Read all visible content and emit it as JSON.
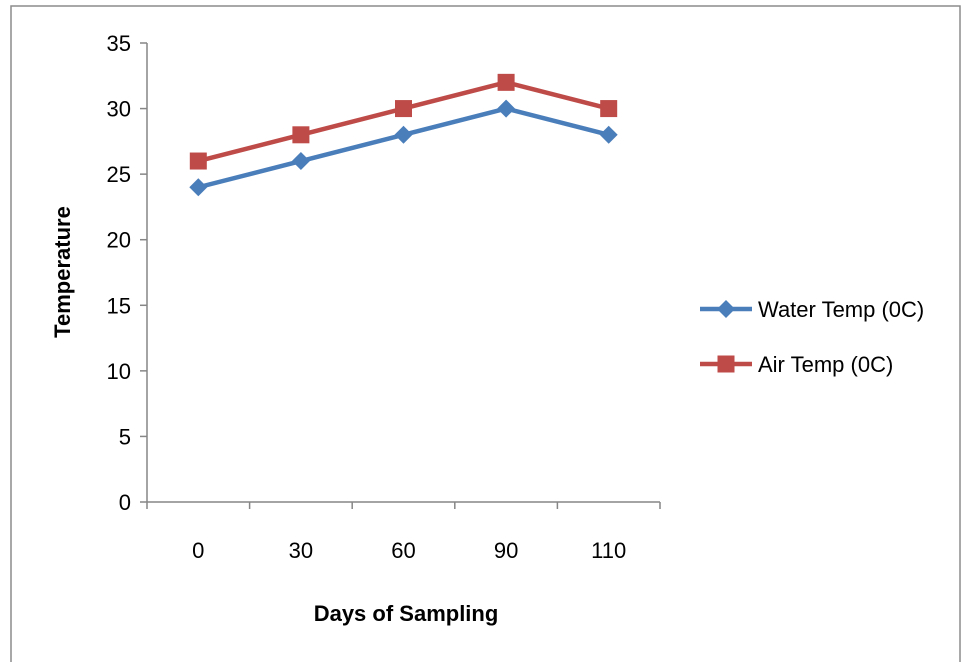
{
  "chart_data": {
    "type": "line",
    "title": "",
    "xlabel": "Days of Sampling",
    "ylabel": "Temperature",
    "categories": [
      "0",
      "30",
      "60",
      "90",
      "110"
    ],
    "ylim": [
      0,
      35
    ],
    "yticks": [
      0,
      5,
      10,
      15,
      20,
      25,
      30,
      35
    ],
    "grid": false,
    "legend_position": "right",
    "series": [
      {
        "name": "Water Temp (0C)",
        "values": [
          24,
          26,
          28,
          30,
          28
        ],
        "color": "#4a7ebb",
        "marker": "diamond"
      },
      {
        "name": "Air Temp (0C)",
        "values": [
          26,
          28,
          30,
          32,
          30
        ],
        "color": "#be4b48",
        "marker": "square"
      }
    ]
  }
}
